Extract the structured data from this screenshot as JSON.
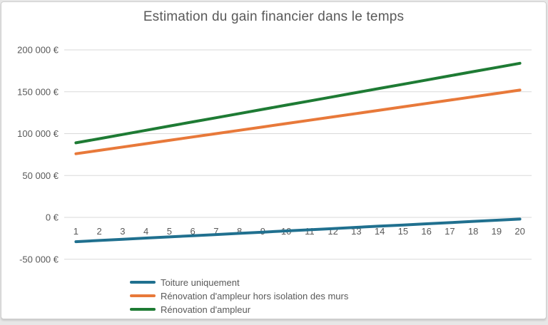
{
  "title": "Estimation du gain financier dans le temps",
  "chart_data": {
    "type": "line",
    "title": "Estimation du gain financier dans le temps",
    "xlabel": "",
    "ylabel": "",
    "x": [
      1,
      2,
      3,
      4,
      5,
      6,
      7,
      8,
      9,
      10,
      11,
      12,
      13,
      14,
      15,
      16,
      17,
      18,
      19,
      20
    ],
    "xtick_labels": [
      "1",
      "2",
      "3",
      "4",
      "5",
      "6",
      "7",
      "8",
      "9",
      "10",
      "11",
      "12",
      "13",
      "14",
      "15",
      "16",
      "17",
      "18",
      "19",
      "20"
    ],
    "ylim": [
      -50000,
      200000
    ],
    "yticks": [
      -50000,
      0,
      50000,
      100000,
      150000,
      200000
    ],
    "ytick_labels": [
      "-50 000 €",
      "0 €",
      "50 000 €",
      "100 000 €",
      "150 000 €",
      "200 000 €"
    ],
    "grid": true,
    "legend_position": "bottom-left",
    "series": [
      {
        "name": "Toiture uniquement",
        "color": "#20708F",
        "values": [
          -29000,
          -27600,
          -26200,
          -24700,
          -23300,
          -21900,
          -20500,
          -19100,
          -17600,
          -16200,
          -14800,
          -13400,
          -11900,
          -10500,
          -9100,
          -7700,
          -6300,
          -4800,
          -3400,
          -2000
        ]
      },
      {
        "name": "Rénovation d'ampleur hors isolation des murs",
        "color": "#E8793A",
        "values": [
          76000,
          80000,
          84000,
          88000,
          92000,
          96000,
          100000,
          104000,
          108000,
          112000,
          116000,
          120000,
          124000,
          128000,
          132000,
          136000,
          140000,
          144000,
          148000,
          152000
        ]
      },
      {
        "name": "Rénovation d'ampleur",
        "color": "#1E7B34",
        "values": [
          89000,
          94000,
          99000,
          104000,
          109000,
          114000,
          119000,
          124000,
          129000,
          134000,
          139000,
          144000,
          149000,
          154000,
          159000,
          164000,
          169000,
          174000,
          179000,
          184000
        ]
      }
    ]
  },
  "colors": {
    "text": "#595959",
    "gridline": "#d9d9d9",
    "card_border": "#cfcfcf",
    "background": "#ffffff"
  }
}
